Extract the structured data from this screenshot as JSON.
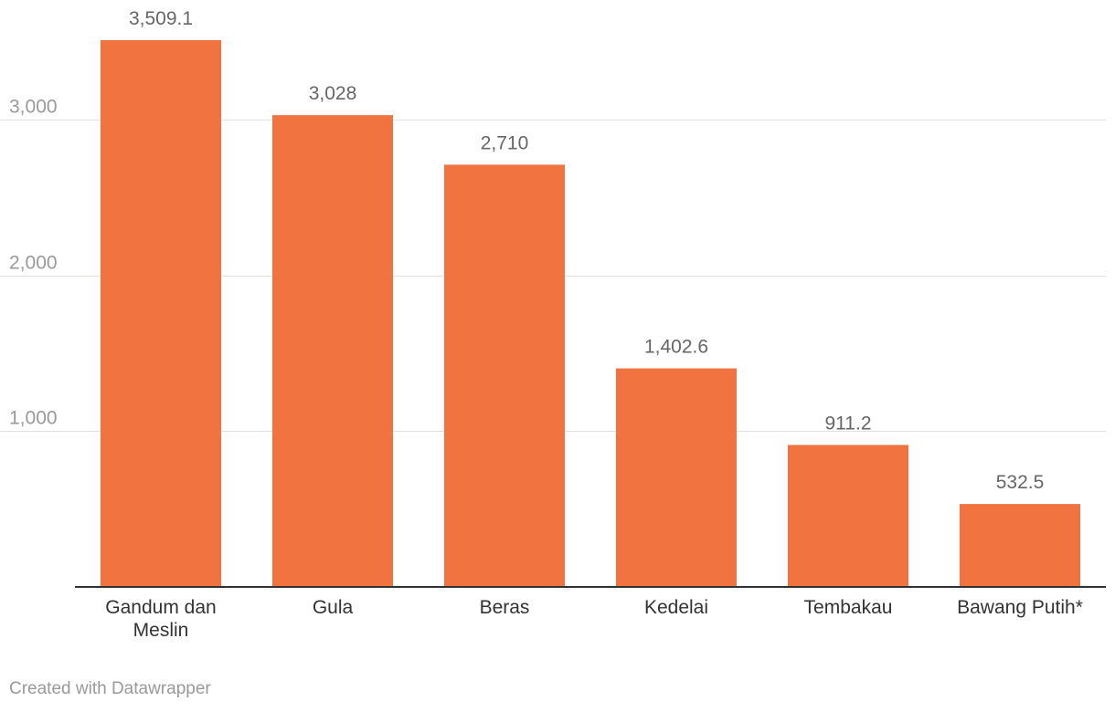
{
  "chart_data": {
    "type": "bar",
    "categories": [
      "Gandum dan Meslin",
      "Gula",
      "Beras",
      "Kedelai",
      "Tembakau",
      "Bawang Putih*"
    ],
    "category_lines": [
      [
        "Gandum dan",
        "Meslin"
      ],
      [
        "Gula"
      ],
      [
        "Beras"
      ],
      [
        "Kedelai"
      ],
      [
        "Tembakau"
      ],
      [
        "Bawang Putih*"
      ]
    ],
    "values": [
      3509.1,
      3028,
      2710,
      1402.6,
      911.2,
      532.5
    ],
    "value_labels": [
      "3,509.1",
      "3,028",
      "2,710",
      "1,402.6",
      "911.2",
      "532.5"
    ],
    "yticks": [
      1000,
      2000,
      3000
    ],
    "ytick_labels": [
      "1,000",
      "2,000",
      "3,000"
    ],
    "ylim": [
      0,
      3509.1
    ],
    "grid": true,
    "bar_color": "#f07340",
    "title": "",
    "xlabel": "",
    "ylabel": ""
  },
  "footer": {
    "credit": "Created with Datawrapper"
  }
}
